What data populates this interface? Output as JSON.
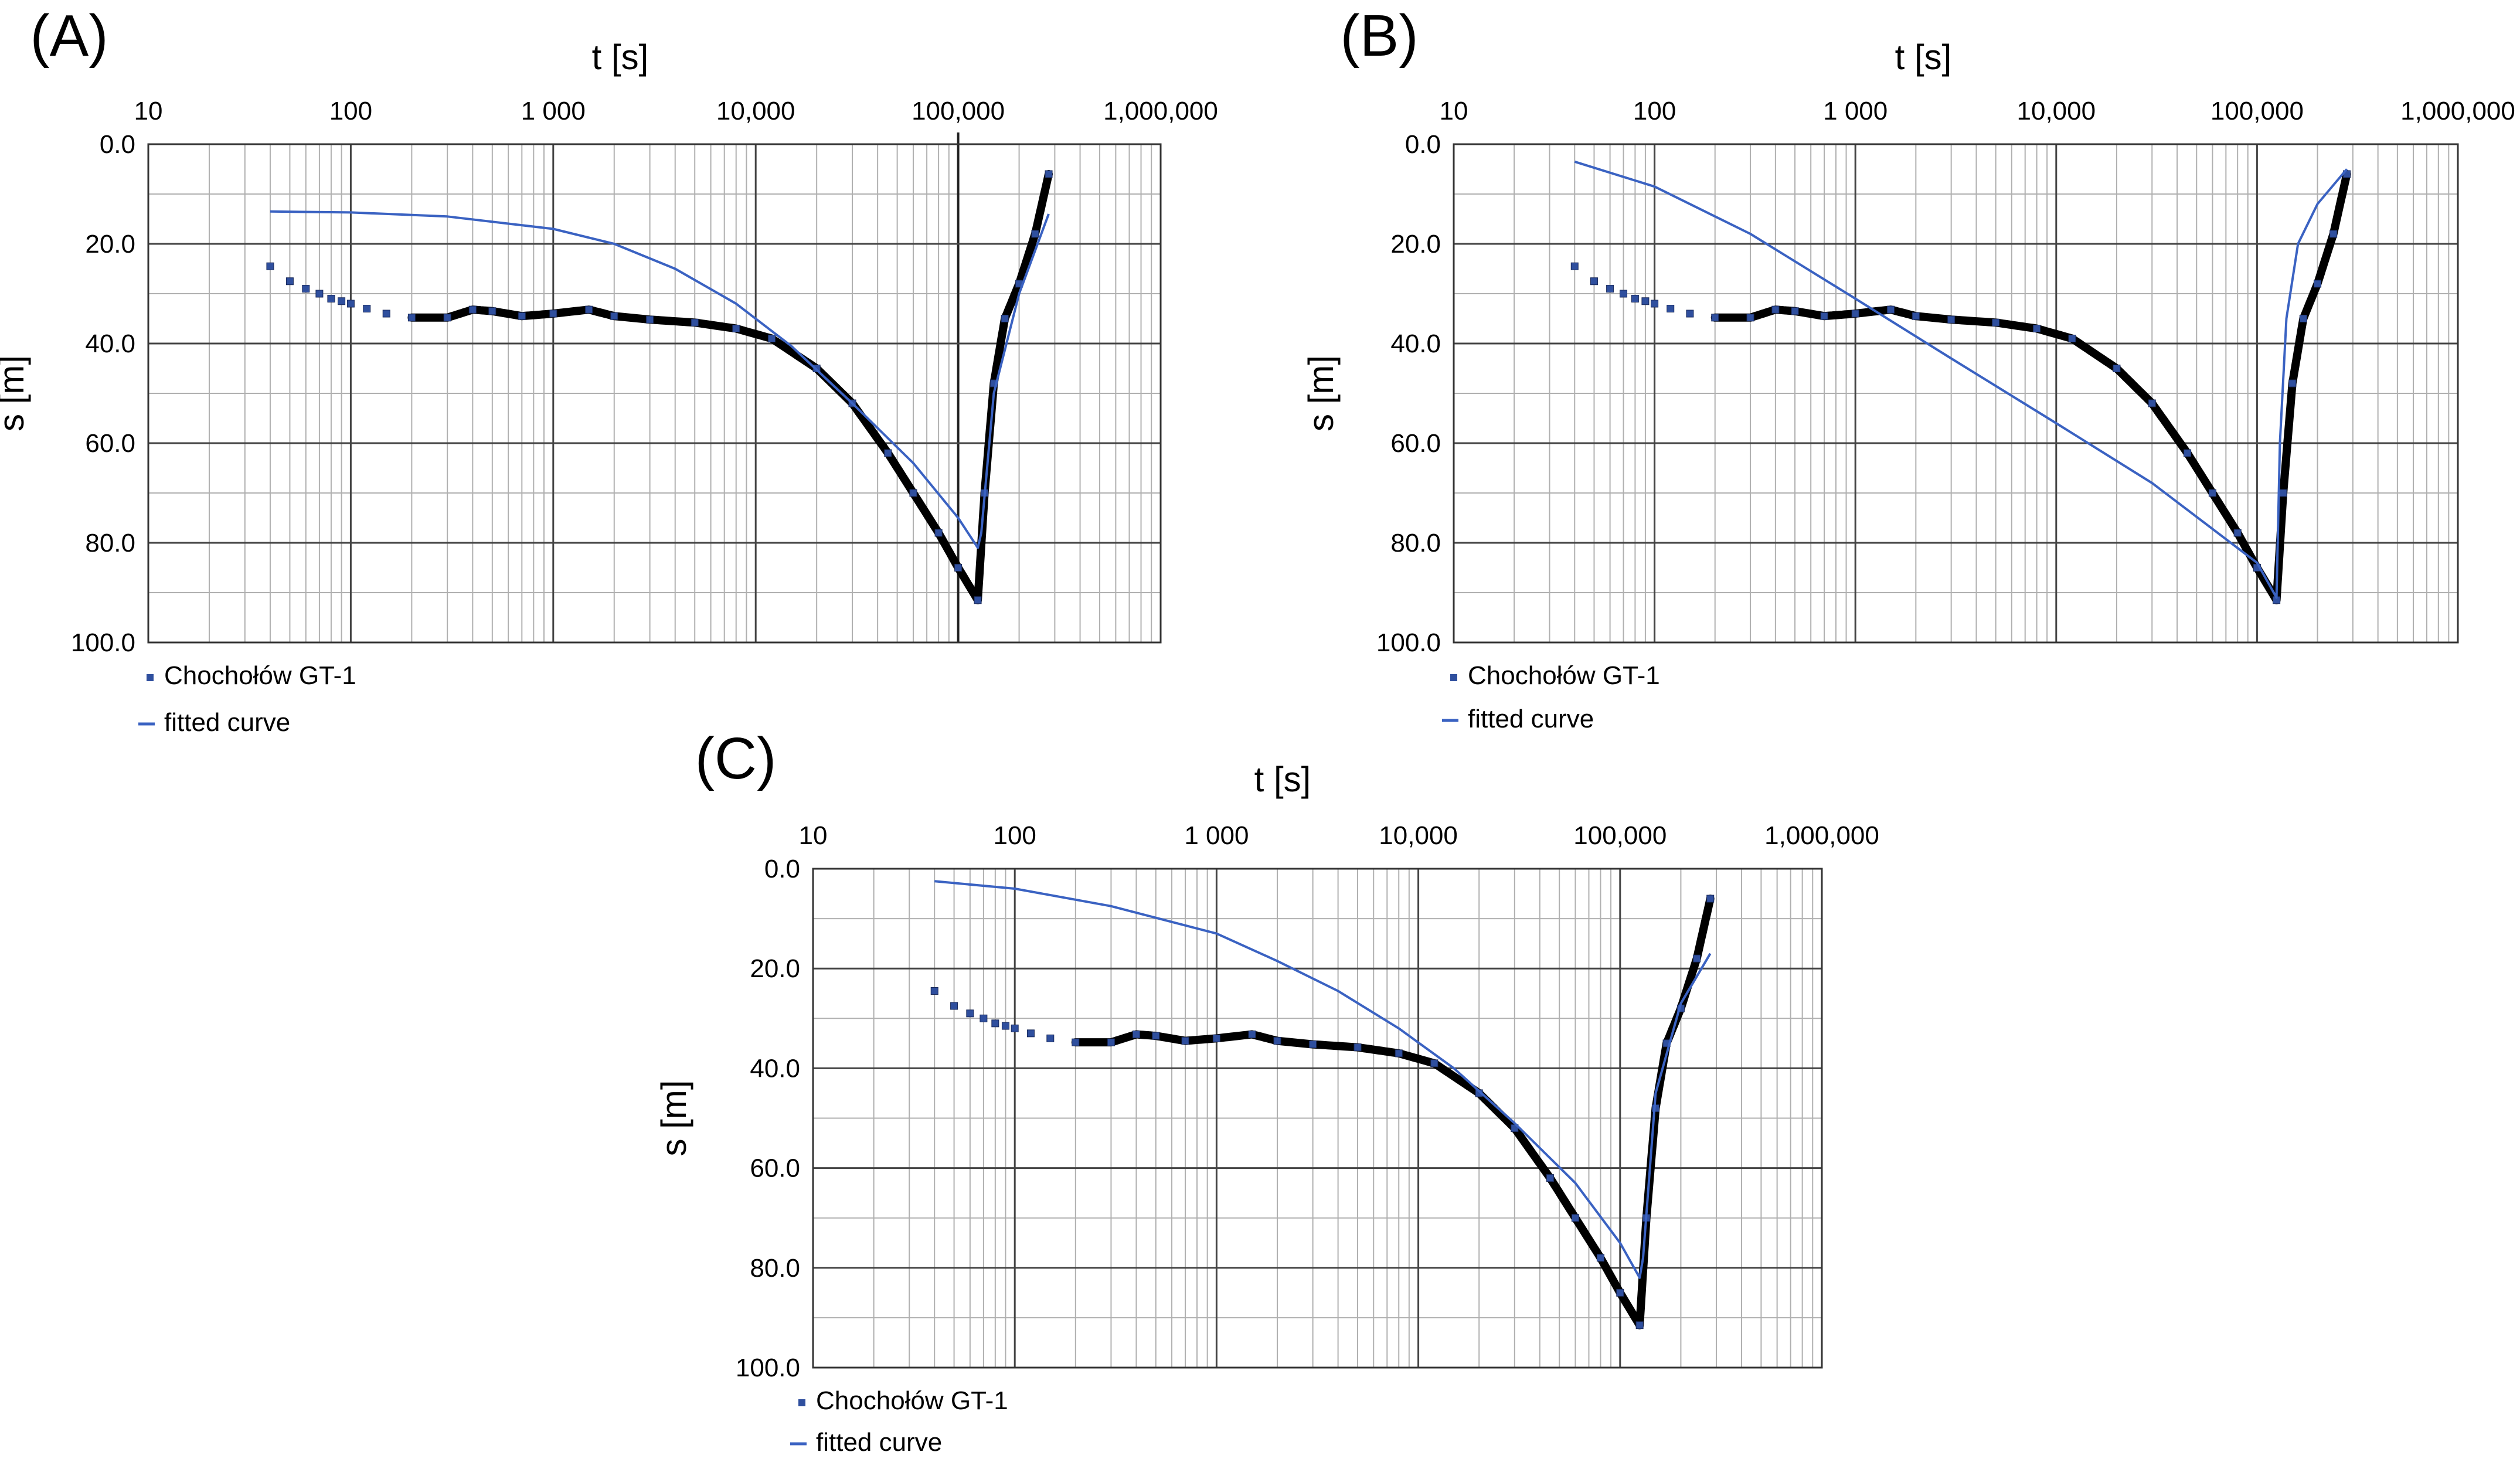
{
  "figure": {
    "colors": {
      "measured": "#2f4f9e",
      "measured_dense": "#000000",
      "fitted": "#3a62c2",
      "grid_major": "#444444",
      "grid_minor": "#b0b0b0",
      "frame": "#333333"
    }
  },
  "chart_data": [
    {
      "panel": "(A)",
      "type": "scatter",
      "xscale": "log",
      "xlim": [
        10,
        1000000
      ],
      "ylim": [
        0,
        100
      ],
      "y_inverted": true,
      "xlabel": "t [s]",
      "ylabel": "s [m]",
      "x_ticks": [
        10,
        100,
        1000,
        10000,
        100000,
        1000000
      ],
      "x_tick_labels": [
        "10",
        "100",
        "1 000",
        "10,000",
        "100,000",
        "1,000,000"
      ],
      "y_ticks": [
        0,
        20,
        40,
        60,
        80,
        100
      ],
      "y_tick_labels": [
        "0.0",
        "20.0",
        "40.0",
        "60.0",
        "80.0",
        "100.0"
      ],
      "extra_major_x_line": 100000,
      "legend": {
        "position": "bottom-left",
        "entries": [
          "Chochołów GT-1",
          "fitted curve"
        ]
      },
      "series": [
        {
          "name": "Chochołów GT-1",
          "kind": "markers",
          "t": [
            40,
            50,
            60,
            70,
            80,
            90,
            100,
            120,
            150,
            200,
            300,
            400,
            500,
            700,
            1000,
            1500,
            2000,
            3000,
            5000,
            8000,
            12000,
            20000,
            30000,
            45000,
            60000,
            80000,
            100000,
            125000,
            135000,
            150000,
            170000,
            200000,
            240000,
            280000
          ],
          "s": [
            24.5,
            27.5,
            29,
            30,
            31,
            31.5,
            32,
            33,
            34,
            34.8,
            34.8,
            33.2,
            33.5,
            34.5,
            34,
            33.2,
            34.5,
            35.2,
            35.8,
            37,
            39,
            45,
            52,
            62,
            70,
            78,
            85,
            91.5,
            70,
            48,
            35,
            28,
            18,
            6
          ]
        },
        {
          "name": "fitted curve",
          "kind": "line",
          "t": [
            40,
            100,
            300,
            1000,
            2000,
            4000,
            8000,
            15000,
            30000,
            60000,
            100000,
            125000,
            130000,
            150000,
            200000,
            280000
          ],
          "s": [
            13.5,
            13.7,
            14.5,
            17,
            20,
            25,
            32,
            40.5,
            52,
            64,
            75,
            81,
            78,
            50,
            30,
            14
          ]
        }
      ]
    },
    {
      "panel": "(B)",
      "type": "scatter",
      "xscale": "log",
      "xlim": [
        10,
        1000000
      ],
      "ylim": [
        0,
        100
      ],
      "y_inverted": true,
      "xlabel": "t [s]",
      "ylabel": "s [m]",
      "x_ticks": [
        10,
        100,
        1000,
        10000,
        100000,
        1000000
      ],
      "x_tick_labels": [
        "10",
        "100",
        "1 000",
        "10,000",
        "100,000",
        "1,000,000"
      ],
      "y_ticks": [
        0,
        20,
        40,
        60,
        80,
        100
      ],
      "y_tick_labels": [
        "0.0",
        "20.0",
        "40.0",
        "60.0",
        "80.0",
        "100.0"
      ],
      "legend": {
        "position": "bottom-left",
        "entries": [
          "Chochołów GT-1",
          "fitted curve"
        ]
      },
      "series": [
        {
          "name": "Chochołów GT-1",
          "kind": "markers",
          "t": [
            40,
            50,
            60,
            70,
            80,
            90,
            100,
            120,
            150,
            200,
            300,
            400,
            500,
            700,
            1000,
            1500,
            2000,
            3000,
            5000,
            8000,
            12000,
            20000,
            30000,
            45000,
            60000,
            80000,
            100000,
            125000,
            135000,
            150000,
            170000,
            200000,
            240000,
            280000
          ],
          "s": [
            24.5,
            27.5,
            29,
            30,
            31,
            31.5,
            32,
            33,
            34,
            34.8,
            34.8,
            33.2,
            33.5,
            34.5,
            34,
            33.2,
            34.5,
            35.2,
            35.8,
            37,
            39,
            45,
            52,
            62,
            70,
            78,
            85,
            91.5,
            70,
            48,
            35,
            28,
            18,
            6
          ]
        },
        {
          "name": "fitted curve",
          "kind": "line",
          "t": [
            40,
            100,
            300,
            1000,
            3000,
            10000,
            30000,
            100000,
            125000,
            130000,
            140000,
            160000,
            200000,
            280000
          ],
          "s": [
            3.5,
            8.5,
            18,
            31,
            43,
            56,
            68,
            84,
            91,
            60,
            35,
            20,
            12,
            5
          ]
        }
      ]
    },
    {
      "panel": "(C)",
      "type": "scatter",
      "xscale": "log",
      "xlim": [
        10,
        1000000
      ],
      "ylim": [
        0,
        100
      ],
      "y_inverted": true,
      "xlabel": "t [s]",
      "ylabel": "s [m]",
      "x_ticks": [
        10,
        100,
        1000,
        10000,
        100000,
        1000000
      ],
      "x_tick_labels": [
        "10",
        "100",
        "1 000",
        "10,000",
        "100,000",
        "1,000,000"
      ],
      "y_ticks": [
        0,
        20,
        40,
        60,
        80,
        100
      ],
      "y_tick_labels": [
        "0.0",
        "20.0",
        "40.0",
        "60.0",
        "80.0",
        "100.0"
      ],
      "legend": {
        "position": "bottom-left",
        "entries": [
          "Chochołów GT-1",
          "fitted curve"
        ]
      },
      "series": [
        {
          "name": "Chochołów GT-1",
          "kind": "markers",
          "t": [
            40,
            50,
            60,
            70,
            80,
            90,
            100,
            120,
            150,
            200,
            300,
            400,
            500,
            700,
            1000,
            1500,
            2000,
            3000,
            5000,
            8000,
            12000,
            20000,
            30000,
            45000,
            60000,
            80000,
            100000,
            125000,
            135000,
            150000,
            170000,
            200000,
            240000,
            280000
          ],
          "s": [
            24.5,
            27.5,
            29,
            30,
            31,
            31.5,
            32,
            33,
            34,
            34.8,
            34.8,
            33.2,
            33.5,
            34.5,
            34,
            33.2,
            34.5,
            35.2,
            35.8,
            37,
            39,
            45,
            52,
            62,
            70,
            78,
            85,
            91.5,
            70,
            48,
            35,
            28,
            18,
            6
          ]
        },
        {
          "name": "fitted curve",
          "kind": "line",
          "t": [
            40,
            100,
            300,
            1000,
            2000,
            4000,
            8000,
            15000,
            30000,
            60000,
            100000,
            125000,
            130000,
            150000,
            200000,
            280000
          ],
          "s": [
            2.5,
            4,
            7.5,
            13,
            18.5,
            24.5,
            32,
            40,
            51,
            63,
            75,
            82,
            78,
            45,
            27,
            17
          ]
        }
      ]
    }
  ]
}
